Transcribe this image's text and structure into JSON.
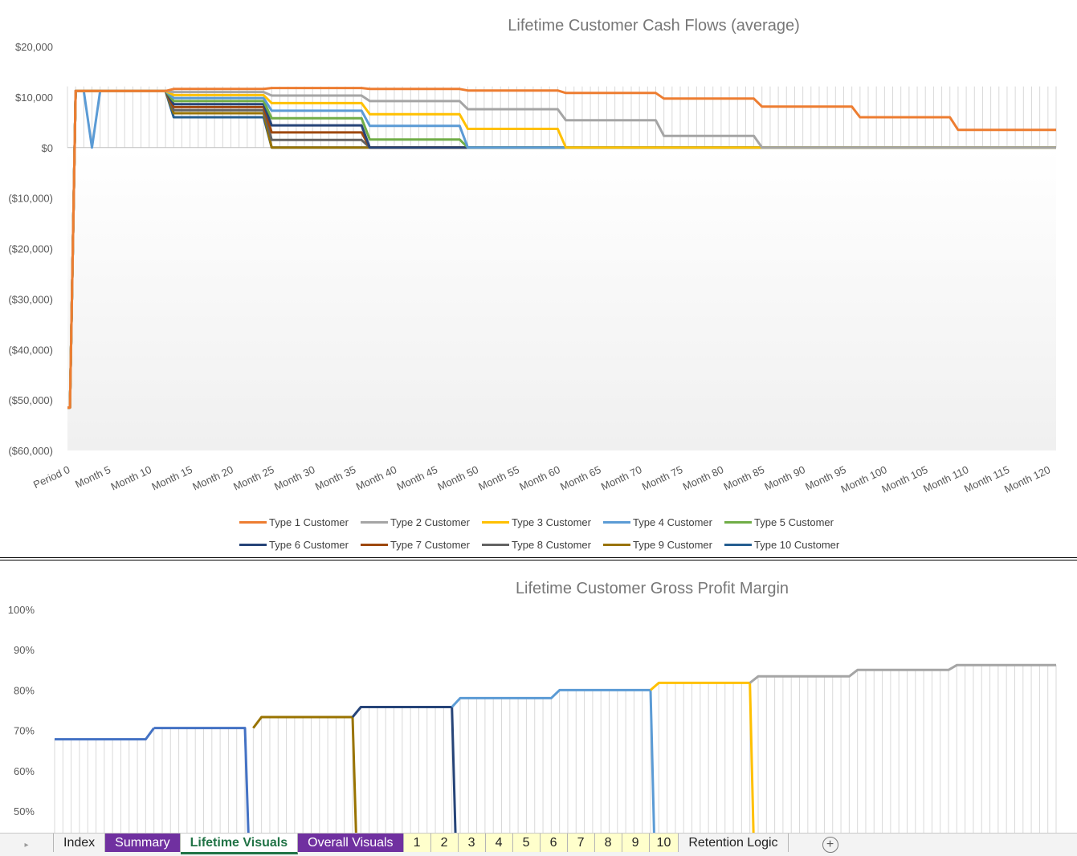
{
  "chart_data": [
    {
      "type": "line",
      "title": "Lifetime Customer Cash Flows (average)",
      "xlabel": "",
      "ylabel": "",
      "ylim": [
        -60000,
        20000
      ],
      "y_ticks": [
        20000,
        10000,
        0,
        -10000,
        -20000,
        -30000,
        -40000,
        -50000,
        -60000
      ],
      "y_tick_labels": [
        "$20,000",
        "$10,000",
        "$0",
        "($10,000)",
        "($20,000)",
        "($30,000)",
        "($40,000)",
        "($50,000)",
        "($60,000)"
      ],
      "x_tick_labels": [
        "Period 0",
        "Month 5",
        "Month 10",
        "Month 15",
        "Month 20",
        "Month 25",
        "Month 30",
        "Month 35",
        "Month 40",
        "Month 45",
        "Month 50",
        "Month 55",
        "Month 60",
        "Month 65",
        "Month 70",
        "Month 75",
        "Month 80",
        "Month 85",
        "Month 90",
        "Month 95",
        "Month 100",
        "Month 105",
        "Month 110",
        "Month 115",
        "Month 120"
      ],
      "x_range": [
        0,
        121
      ],
      "legend_position": "bottom",
      "grid": "vertical",
      "series_shape": {
        "comment": "initial investment then stepped monthly cash flows",
        "start": -51500,
        "base": 11200
      },
      "series": [
        {
          "name": "Type 1 Customer",
          "color": "#ED7D31",
          "steps": [
            [
              13,
              11600
            ],
            [
              25,
              11800
            ],
            [
              37,
              11600
            ],
            [
              49,
              11300
            ],
            [
              61,
              10800
            ],
            [
              73,
              9700
            ],
            [
              85,
              8100
            ],
            [
              97,
              6000
            ],
            [
              109,
              3500
            ],
            [
              121,
              3500
            ]
          ],
          "end": null
        },
        {
          "name": "Type 2 Customer",
          "color": "#A5A5A5",
          "steps": [
            [
              13,
              11000
            ],
            [
              25,
              10300
            ],
            [
              37,
              9200
            ],
            [
              49,
              7600
            ],
            [
              61,
              5400
            ],
            [
              73,
              2300
            ]
          ],
          "end": 85
        },
        {
          "name": "Type 3 Customer",
          "color": "#FFC000",
          "steps": [
            [
              13,
              10400
            ],
            [
              25,
              8800
            ],
            [
              37,
              6600
            ],
            [
              49,
              3700
            ]
          ],
          "end": 61
        },
        {
          "name": "Type 4 Customer",
          "color": "#5B9BD5",
          "steps": [
            [
              13,
              9800
            ],
            [
              25,
              7300
            ],
            [
              37,
              4300
            ]
          ],
          "end": 49,
          "dip_at": 3
        },
        {
          "name": "Type 5 Customer",
          "color": "#70AD47",
          "steps": [
            [
              13,
              9200
            ],
            [
              25,
              5800
            ],
            [
              37,
              1600
            ]
          ],
          "end": 49
        },
        {
          "name": "Type 6 Customer",
          "color": "#264478",
          "steps": [
            [
              13,
              8600
            ],
            [
              25,
              4400
            ]
          ],
          "end": 37
        },
        {
          "name": "Type 7 Customer",
          "color": "#9E480E",
          "steps": [
            [
              13,
              8000
            ],
            [
              25,
              3000
            ]
          ],
          "end": 37
        },
        {
          "name": "Type 8 Customer",
          "color": "#636363",
          "steps": [
            [
              13,
              7400
            ],
            [
              25,
              1500
            ]
          ],
          "end": 37
        },
        {
          "name": "Type 9 Customer",
          "color": "#997300",
          "steps": [
            [
              13,
              6800
            ]
          ],
          "end": 25
        },
        {
          "name": "Type 10 Customer",
          "color": "#255E91",
          "steps": [
            [
              13,
              6000
            ]
          ],
          "end": 25
        }
      ]
    },
    {
      "type": "line",
      "title": "Lifetime Customer Gross Profit Margin",
      "xlabel": "",
      "ylabel": "",
      "ylim": [
        45,
        100
      ],
      "y_ticks": [
        100,
        90,
        80,
        70,
        60,
        50
      ],
      "y_tick_labels": [
        "100%",
        "90%",
        "80%",
        "70%",
        "60%",
        "50%"
      ],
      "x_range": [
        0,
        121
      ],
      "grid": "vertical",
      "segments": [
        {
          "color": "#4472C4",
          "from": 0,
          "to": 12,
          "values": [
            [
              0,
              67.8
            ],
            [
              11,
              67.8
            ],
            [
              12,
              70.6
            ]
          ]
        },
        {
          "color": "#4472C4",
          "from": 12,
          "to": 24,
          "values": [
            [
              12,
              70.6
            ],
            [
              23,
              70.6
            ]
          ],
          "drop_to": 40
        },
        {
          "color": "#997300",
          "from": 24,
          "to": 37,
          "values": [
            [
              24,
              70.6
            ],
            [
              25,
              73.3
            ],
            [
              36,
              73.3
            ]
          ],
          "drop_to": 40
        },
        {
          "color": "#264478",
          "from": 37,
          "to": 49,
          "values": [
            [
              36,
              73.3
            ],
            [
              37,
              75.8
            ],
            [
              48,
              75.8
            ]
          ],
          "drop_to": 40
        },
        {
          "color": "#5B9BD5",
          "from": 49,
          "to": 73,
          "values": [
            [
              48,
              75.8
            ],
            [
              49,
              78.0
            ],
            [
              60,
              78.0
            ],
            [
              61,
              80.0
            ],
            [
              72,
              80.0
            ]
          ],
          "drop_to": 40
        },
        {
          "color": "#FFC000",
          "from": 73,
          "to": 85,
          "values": [
            [
              72,
              80.0
            ],
            [
              73,
              81.8
            ],
            [
              84,
              81.8
            ]
          ],
          "drop_to": 40
        },
        {
          "color": "#A5A5A5",
          "from": 85,
          "to": 121,
          "values": [
            [
              84,
              81.8
            ],
            [
              85,
              83.4
            ],
            [
              96,
              83.4
            ],
            [
              97,
              85.0
            ],
            [
              108,
              85.0
            ],
            [
              109,
              86.2
            ],
            [
              121,
              86.2
            ]
          ]
        }
      ]
    }
  ],
  "sheet_tabs": [
    {
      "label": "Index",
      "style": "plain"
    },
    {
      "label": "Summary",
      "style": "purple"
    },
    {
      "label": "Lifetime Visuals",
      "style": "active"
    },
    {
      "label": "Overall Visuals",
      "style": "purple"
    },
    {
      "label": "1",
      "style": "yellow"
    },
    {
      "label": "2",
      "style": "yellow"
    },
    {
      "label": "3",
      "style": "yellow"
    },
    {
      "label": "4",
      "style": "yellow"
    },
    {
      "label": "5",
      "style": "yellow"
    },
    {
      "label": "6",
      "style": "yellow"
    },
    {
      "label": "7",
      "style": "yellow"
    },
    {
      "label": "8",
      "style": "yellow"
    },
    {
      "label": "9",
      "style": "yellow"
    },
    {
      "label": "10",
      "style": "yellow"
    },
    {
      "label": "Retention Logic",
      "style": "plain"
    }
  ],
  "tab_nav_icon": "triangle-right-icon",
  "add_sheet_icon": "plus-circle-icon"
}
